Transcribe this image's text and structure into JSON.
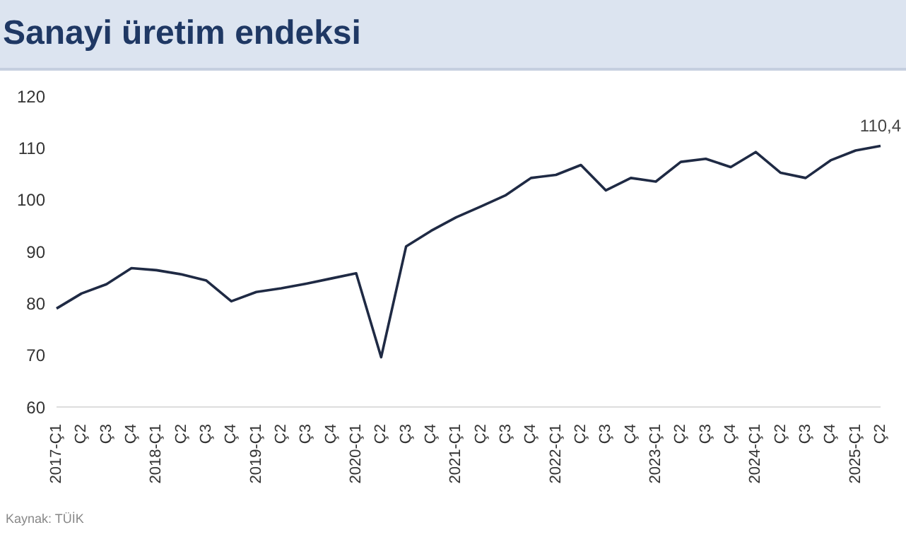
{
  "chart_data": {
    "type": "line",
    "title": "Sanayi üretim endeksi",
    "annotations": [
      "Kaynak: TÜİK"
    ],
    "categories": [
      "2017-Ç1",
      "Ç2",
      "Ç3",
      "Ç4",
      "2018-Ç1",
      "Ç2",
      "Ç3",
      "Ç4",
      "2019-Ç1",
      "Ç2",
      "Ç3",
      "Ç4",
      "2020-Ç1",
      "Ç2",
      "Ç3",
      "Ç4",
      "2021-Ç1",
      "Ç2",
      "Ç3",
      "Ç4",
      "2022-Ç1",
      "Ç2",
      "Ç3",
      "Ç4",
      "2023-Ç1",
      "Ç2",
      "Ç3",
      "Ç4",
      "2024-Ç1",
      "Ç2",
      "Ç3",
      "Ç4",
      "2025-Ç1",
      "Ç2"
    ],
    "series": [
      {
        "color": "#1f2a44",
        "values": [
          79.0,
          81.9,
          83.7,
          86.8,
          86.4,
          85.6,
          84.4,
          80.4,
          82.2,
          82.9,
          83.8,
          84.8,
          85.8,
          69.6,
          91.0,
          94.0,
          96.6,
          98.7,
          100.9,
          104.2,
          104.8,
          106.7,
          101.8,
          104.2,
          103.5,
          107.3,
          107.9,
          106.3,
          109.2,
          105.2,
          104.2,
          107.6,
          109.5,
          110.4
        ],
        "value_labels": [
          null,
          null,
          null,
          null,
          null,
          null,
          null,
          null,
          null,
          null,
          null,
          null,
          null,
          null,
          null,
          null,
          null,
          null,
          null,
          null,
          null,
          null,
          null,
          null,
          null,
          null,
          null,
          null,
          null,
          null,
          null,
          null,
          null,
          "110,4"
        ]
      }
    ],
    "ylim": [
      60,
      120
    ],
    "yticks": [
      60,
      70,
      80,
      90,
      100,
      110,
      120
    ],
    "grid": false,
    "legend": false,
    "marker": "none",
    "line_style": "solid"
  }
}
